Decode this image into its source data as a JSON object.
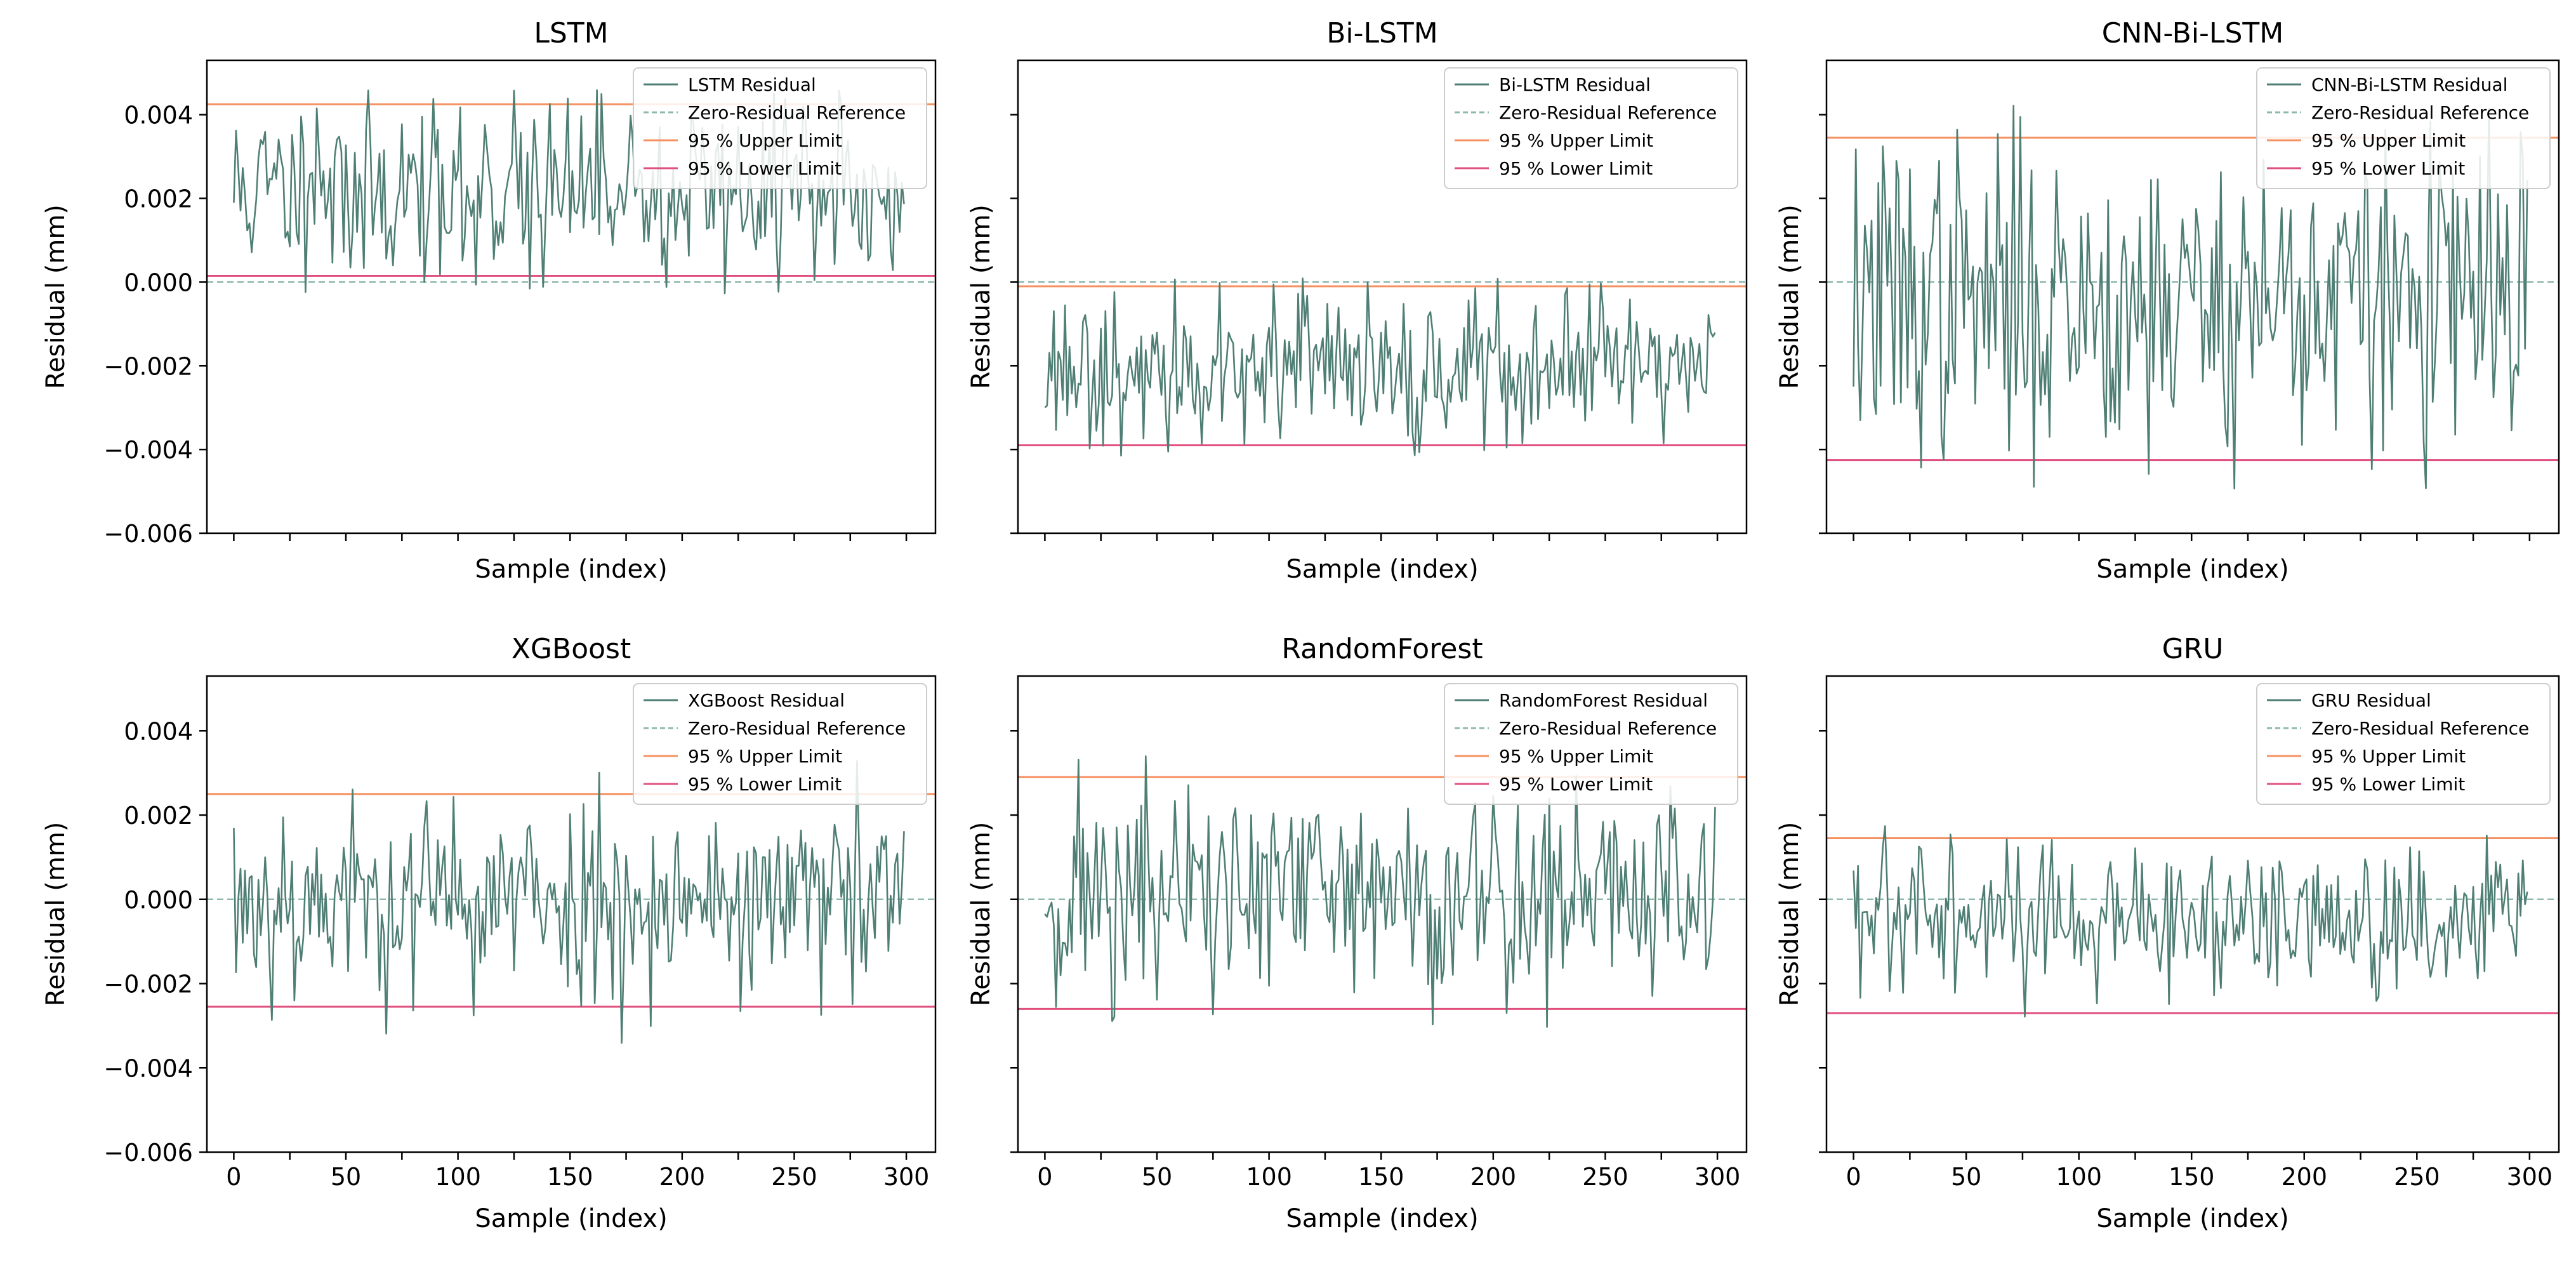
{
  "chart_data": [
    {
      "type": "line",
      "title": "LSTM",
      "xlabel": "Sample (index)",
      "ylabel": "Residual (mm)",
      "xlim": [
        -12,
        313
      ],
      "ylim": [
        -0.006,
        0.0053
      ],
      "show_xticklabels": false,
      "show_yticklabels": true,
      "legend_loc": "upper-right",
      "series_name": "LSTM Residual",
      "mean": 0.0022,
      "spread": 0.0011,
      "min_cap": -0.0003,
      "max_cap": 0.0046,
      "upper_limit": 0.00425,
      "lower_limit": 0.00015,
      "seed": 11
    },
    {
      "type": "line",
      "title": "Bi-LSTM",
      "xlabel": "Sample (index)",
      "ylabel": "Residual (mm)",
      "xlim": [
        -12,
        313
      ],
      "ylim": [
        -0.006,
        0.0053
      ],
      "show_xticklabels": false,
      "show_yticklabels": false,
      "legend_loc": "upper-right",
      "series_name": "Bi-LSTM Residual",
      "mean": -0.002,
      "spread": 0.0009,
      "min_cap": -0.0042,
      "max_cap": 0.0001,
      "upper_limit": -0.0001,
      "lower_limit": -0.0039,
      "seed": 23
    },
    {
      "type": "line",
      "title": "CNN-Bi-LSTM",
      "xlabel": "Sample (index)",
      "ylabel": "Residual (mm)",
      "xlim": [
        -12,
        313
      ],
      "ylim": [
        -0.006,
        0.0053
      ],
      "show_xticklabels": false,
      "show_yticklabels": false,
      "legend_loc": "upper-right",
      "series_name": "CNN-Bi-LSTM Residual",
      "mean": -0.0004,
      "spread": 0.0019,
      "min_cap": -0.0055,
      "max_cap": 0.0048,
      "upper_limit": 0.00345,
      "lower_limit": -0.00425,
      "seed": 37
    },
    {
      "type": "line",
      "title": "XGBoost",
      "xlabel": "Sample (index)",
      "ylabel": "Residual (mm)",
      "xlim": [
        -12,
        313
      ],
      "ylim": [
        -0.006,
        0.0053
      ],
      "show_xticklabels": true,
      "show_yticklabels": true,
      "legend_loc": "upper-right",
      "series_name": "XGBoost Residual",
      "mean": 0.0,
      "spread": 0.0012,
      "min_cap": -0.0038,
      "max_cap": 0.0033,
      "upper_limit": 0.0025,
      "lower_limit": -0.00255,
      "seed": 53
    },
    {
      "type": "line",
      "title": "RandomForest",
      "xlabel": "Sample (index)",
      "ylabel": "Residual (mm)",
      "xlim": [
        -12,
        313
      ],
      "ylim": [
        -0.006,
        0.0053
      ],
      "show_xticklabels": true,
      "show_yticklabels": false,
      "legend_loc": "upper-right",
      "series_name": "RandomForest Residual",
      "mean": 0.0001,
      "spread": 0.0014,
      "min_cap": -0.0037,
      "max_cap": 0.0039,
      "upper_limit": 0.0029,
      "lower_limit": -0.0026,
      "seed": 71
    },
    {
      "type": "line",
      "title": "GRU",
      "xlabel": "Sample (index)",
      "ylabel": "Residual (mm)",
      "xlim": [
        -12,
        313
      ],
      "ylim": [
        -0.006,
        0.0053
      ],
      "show_xticklabels": true,
      "show_yticklabels": false,
      "legend_loc": "upper-right",
      "series_name": "GRU Residual",
      "mean": -0.0006,
      "spread": 0.0009,
      "min_cap": -0.0031,
      "max_cap": 0.0018,
      "upper_limit": 0.00145,
      "lower_limit": -0.0027,
      "seed": 97
    }
  ],
  "shared": {
    "n_samples": 300,
    "x_ticks": [
      0,
      50,
      100,
      150,
      200,
      250,
      300
    ],
    "y_ticks": [
      -0.006,
      -0.004,
      -0.002,
      0.0,
      0.002,
      0.004
    ],
    "y_tick_labels": [
      "−0.006",
      "−0.004",
      "−0.002",
      "0.000",
      "0.002",
      "0.004"
    ],
    "legend_labels": {
      "reference": "Zero-Residual Reference",
      "upper": "95 % Upper Limit",
      "lower": "95 % Lower Limit"
    }
  },
  "colors": {
    "residual": "#4f7f74",
    "reference": "#8fb8ae",
    "upper": "#f59060",
    "lower": "#e0507e",
    "axis": "#000000",
    "legend_border": "#cccccc"
  }
}
